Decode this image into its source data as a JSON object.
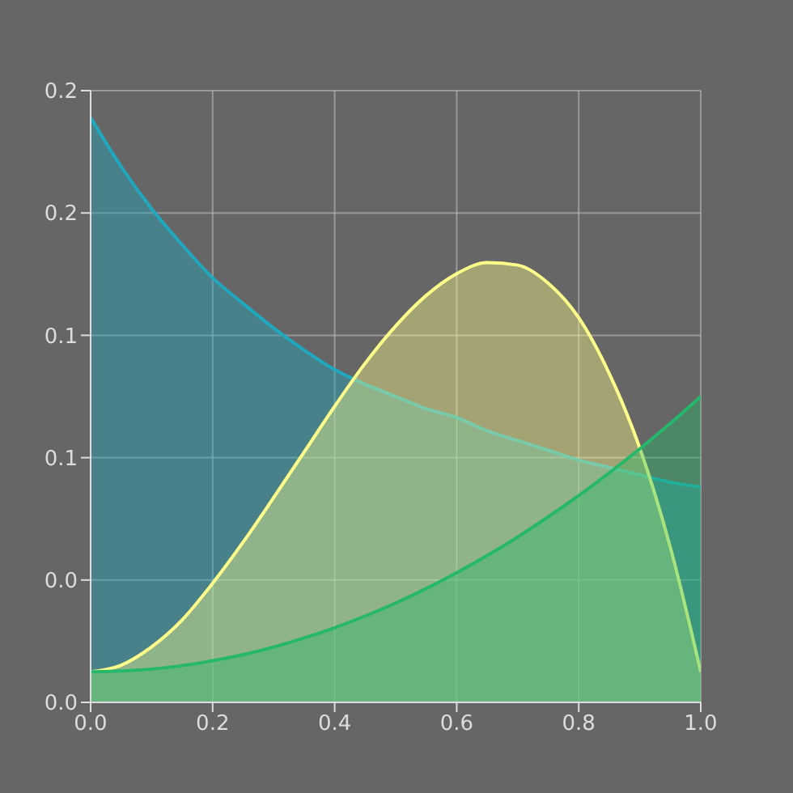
{
  "chart_data": {
    "type": "area",
    "x": [
      0,
      0.05,
      0.1,
      0.15,
      0.2,
      0.25,
      0.3,
      0.35,
      0.4,
      0.45,
      0.5,
      0.55,
      0.6,
      0.65,
      0.7,
      0.75,
      0.8,
      0.85,
      0.9,
      0.95,
      1
    ],
    "series": [
      {
        "color": "#1fa9c0",
        "values": [
          0.239,
          0.219,
          0.2017,
          0.187,
          0.1735,
          0.163,
          0.153,
          0.144,
          0.136,
          0.13,
          0.125,
          0.12,
          0.1164,
          0.111,
          0.107,
          0.103,
          0.099,
          0.096,
          0.093,
          0.09,
          0.088
        ]
      },
      {
        "color": "#ffff8a",
        "values": [
          0.0125,
          0.0152,
          0.0227,
          0.0337,
          0.0487,
          0.0655,
          0.0837,
          0.1023,
          0.121,
          0.1386,
          0.1538,
          0.1663,
          0.1752,
          0.1797,
          0.1787,
          0.1713,
          0.1572,
          0.1344,
          0.104,
          0.0635,
          0.0125
        ]
      },
      {
        "color": "#25b86a",
        "values": [
          0.0125,
          0.0128,
          0.0136,
          0.015,
          0.017,
          0.0195,
          0.0226,
          0.0263,
          0.0305,
          0.0353,
          0.0406,
          0.0465,
          0.053,
          0.06,
          0.0676,
          0.0758,
          0.0845,
          0.0938,
          0.1036,
          0.114,
          0.125
        ]
      }
    ],
    "xlim": [
      0,
      1
    ],
    "xticks": [
      {
        "value": 0,
        "label": "0.0"
      },
      {
        "value": 0.2,
        "label": "0.2"
      },
      {
        "value": 0.4,
        "label": "0.4"
      },
      {
        "value": 0.6,
        "label": "0.6"
      },
      {
        "value": 0.8,
        "label": "0.8"
      },
      {
        "value": 1,
        "label": "1.0"
      }
    ],
    "ylim": [
      0,
      0.25
    ],
    "yticks": [
      {
        "value": 0,
        "label": "0.0"
      },
      {
        "value": 0.05,
        "label": "0.0"
      },
      {
        "value": 0.1,
        "label": "0.1"
      },
      {
        "value": 0.15,
        "label": "0.1"
      },
      {
        "value": 0.2,
        "label": "0.2"
      },
      {
        "value": 0.25,
        "label": "0.2"
      }
    ],
    "grid": true
  }
}
